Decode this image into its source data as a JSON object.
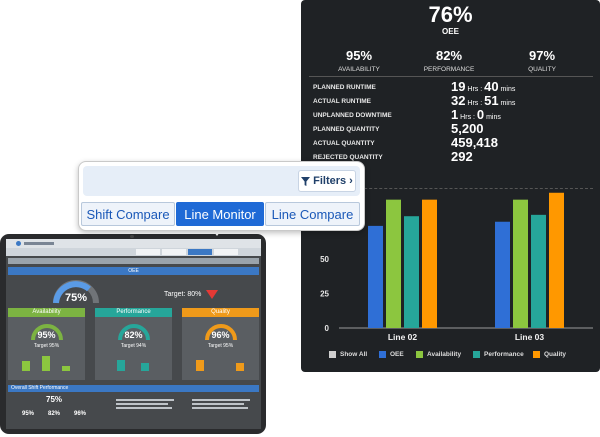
{
  "dashboard": {
    "oee_value": "76%",
    "oee_label": "OEE",
    "kpis": [
      {
        "value": "95%",
        "label": "AVAILABILITY"
      },
      {
        "value": "82%",
        "label": "PERFORMANCE"
      },
      {
        "value": "97%",
        "label": "QUALITY"
      }
    ],
    "metrics": [
      {
        "label": "PLANNED RUNTIME",
        "num1": "19",
        "unit1": " Hrs : ",
        "num2": "40",
        "unit2": " mins"
      },
      {
        "label": "ACTUAL RUNTIME",
        "num1": "32",
        "unit1": " Hrs : ",
        "num2": "51",
        "unit2": " mins"
      },
      {
        "label": "UNPLANNED DOWNTIME",
        "num1": "1",
        "unit1": " Hrs : ",
        "num2": "0",
        "unit2": " mins"
      },
      {
        "label": "PLANNED QUANTITY",
        "num1": "5,200",
        "unit1": "",
        "num2": "",
        "unit2": ""
      },
      {
        "label": "ACTUAL QUANTITY",
        "num1": "459,418",
        "unit1": "",
        "num2": "",
        "unit2": ""
      },
      {
        "label": "REJECTED QUANTITY",
        "num1": "292",
        "unit1": "",
        "num2": "",
        "unit2": ""
      }
    ]
  },
  "chart_data": {
    "type": "bar",
    "categories": [
      "Line 02",
      "Line 03"
    ],
    "ylim": [
      0,
      100
    ],
    "yticks": [
      "0",
      "25",
      "50",
      "75"
    ],
    "series": [
      {
        "name": "OEE",
        "color": "#2f6fd6",
        "values": [
          74,
          77
        ]
      },
      {
        "name": "Availability",
        "color": "#8cc63f",
        "values": [
          93,
          93
        ]
      },
      {
        "name": "Performance",
        "color": "#26a69a",
        "values": [
          81,
          82
        ]
      },
      {
        "name": "Quality",
        "color": "#ff9800",
        "values": [
          93,
          98
        ]
      }
    ],
    "legend": [
      "Show All",
      "OEE",
      "Availability",
      "Performance",
      "Quality"
    ],
    "legend_position": "bottom"
  },
  "popup": {
    "filters_label": "Filters",
    "tabs": [
      "Shift Compare",
      "Line Monitor",
      "Line Compare"
    ],
    "active_tab": "Line Monitor"
  },
  "tablet": {
    "oee_title": "OEE",
    "oee_value": "75%",
    "target_text": "Target: 80%",
    "panels": [
      {
        "title": "Availability",
        "color": "#7cb342",
        "value": "95%",
        "target": "Target 95%"
      },
      {
        "title": "Performance",
        "color": "#26a69a",
        "value": "82%",
        "target": "Target 94%"
      },
      {
        "title": "Quality",
        "color": "#ef9a1a",
        "value": "96%",
        "target": "Target 95%"
      }
    ],
    "shift_label": "Overall Shift Performance",
    "shift_oee": "75%",
    "shift_kpis": [
      "95%",
      "82%",
      "96%"
    ]
  }
}
